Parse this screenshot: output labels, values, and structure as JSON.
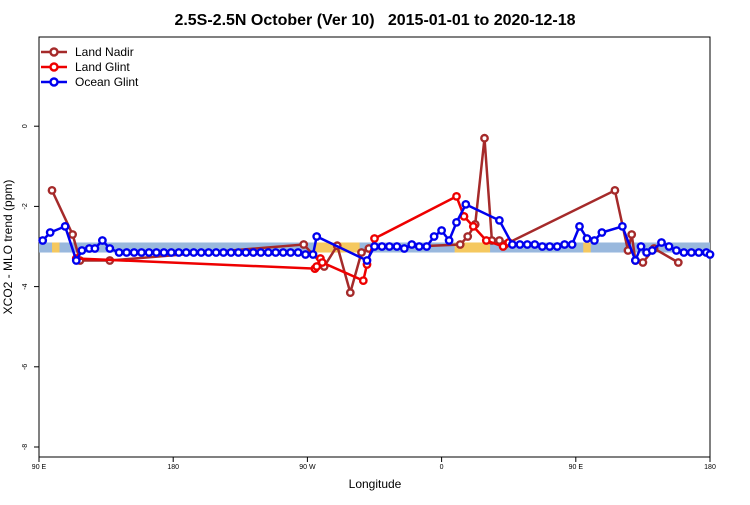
{
  "chart_data": {
    "type": "line",
    "title": "2.5S-2.5N October (Ver 10)   2015-01-01 to 2020-12-18",
    "xlabel": "Longitude",
    "ylabel": "XCO2 - MLO trend (ppm)",
    "xlim": [
      90,
      450
    ],
    "ylim": [
      -8,
      2
    ],
    "x_ticks": [
      {
        "value": 90,
        "label": "90 E"
      },
      {
        "value": 162,
        "label": "180"
      },
      {
        "value": 234,
        "label": "90 W"
      },
      {
        "value": 306,
        "label": "0"
      },
      {
        "value": 378,
        "label": "90 E"
      },
      {
        "value": 450,
        "label": "180"
      }
    ],
    "y_ticks": [
      0,
      -2,
      -4,
      -6,
      -8
    ],
    "legend_position": "top-left",
    "colors": {
      "land_nadir": "#a52a2a",
      "land_glint": "#ee0000",
      "ocean_glint": "#0000ee",
      "band_ocean": "#99b8dd",
      "band_land": "#f5c85f"
    },
    "band": {
      "ymin": -3.15,
      "ymax": -2.9,
      "land_segments": [
        [
          97,
          101
        ],
        [
          238,
          262
        ],
        [
          313,
          332
        ],
        [
          382,
          386
        ]
      ]
    },
    "series": [
      {
        "name": "Land Nadir",
        "color": "#a52a2a",
        "points": [
          [
            97,
            -1.6
          ],
          [
            108,
            -2.7
          ],
          [
            112,
            -3.35
          ],
          [
            128,
            -3.35
          ],
          [
            232,
            -2.95
          ],
          [
            243,
            -3.5
          ],
          [
            250,
            -2.98
          ],
          [
            257,
            -4.15
          ],
          [
            263,
            -3.15
          ],
          [
            267,
            -3.05
          ],
          [
            316,
            -2.95
          ],
          [
            320,
            -2.75
          ],
          [
            324,
            -2.45
          ],
          [
            329,
            -0.3
          ],
          [
            333,
            -2.85
          ],
          [
            337,
            -2.85
          ],
          [
            340,
            -2.95
          ],
          [
            399,
            -1.6
          ],
          [
            406,
            -3.1
          ],
          [
            408,
            -2.7
          ],
          [
            410,
            -3.35
          ],
          [
            414,
            -3.4
          ],
          [
            420,
            -3.05
          ],
          [
            433,
            -3.4
          ]
        ]
      },
      {
        "name": "Land Glint",
        "color": "#ee0000",
        "points": [
          [
            110,
            -3.3
          ],
          [
            238,
            -3.55
          ],
          [
            239,
            -3.5
          ],
          [
            241,
            -3.3
          ],
          [
            242,
            -3.4
          ],
          [
            264,
            -3.85
          ],
          [
            266,
            -3.45
          ],
          [
            270,
            -2.8
          ],
          [
            314,
            -1.75
          ],
          [
            318,
            -2.25
          ],
          [
            323,
            -2.5
          ],
          [
            330,
            -2.85
          ],
          [
            339,
            -3.0
          ],
          [
            342,
            -2.9
          ]
        ]
      },
      {
        "name": "Ocean Glint",
        "color": "#0000ee",
        "points": [
          [
            92,
            -2.85
          ],
          [
            96,
            -2.65
          ],
          [
            104,
            -2.5
          ],
          [
            110,
            -3.35
          ],
          [
            113,
            -3.1
          ],
          [
            117,
            -3.05
          ],
          [
            120,
            -3.05
          ],
          [
            124,
            -2.85
          ],
          [
            128,
            -3.05
          ],
          [
            133,
            -3.15
          ],
          [
            137,
            -3.15
          ],
          [
            141,
            -3.15
          ],
          [
            145,
            -3.15
          ],
          [
            149,
            -3.15
          ],
          [
            153,
            -3.15
          ],
          [
            157,
            -3.15
          ],
          [
            161,
            -3.15
          ],
          [
            165,
            -3.15
          ],
          [
            169,
            -3.15
          ],
          [
            173,
            -3.15
          ],
          [
            177,
            -3.15
          ],
          [
            181,
            -3.15
          ],
          [
            185,
            -3.15
          ],
          [
            189,
            -3.15
          ],
          [
            193,
            -3.15
          ],
          [
            197,
            -3.15
          ],
          [
            201,
            -3.15
          ],
          [
            205,
            -3.15
          ],
          [
            209,
            -3.15
          ],
          [
            213,
            -3.15
          ],
          [
            217,
            -3.15
          ],
          [
            221,
            -3.15
          ],
          [
            225,
            -3.15
          ],
          [
            229,
            -3.15
          ],
          [
            233,
            -3.2
          ],
          [
            237,
            -3.2
          ],
          [
            239,
            -2.75
          ],
          [
            266,
            -3.35
          ],
          [
            270,
            -3.0
          ],
          [
            274,
            -3.0
          ],
          [
            278,
            -3.0
          ],
          [
            282,
            -3.0
          ],
          [
            286,
            -3.05
          ],
          [
            290,
            -2.95
          ],
          [
            294,
            -3.0
          ],
          [
            298,
            -3.0
          ],
          [
            302,
            -2.75
          ],
          [
            306,
            -2.6
          ],
          [
            310,
            -2.85
          ],
          [
            314,
            -2.4
          ],
          [
            319,
            -1.95
          ],
          [
            337,
            -2.35
          ],
          [
            344,
            -2.95
          ],
          [
            348,
            -2.95
          ],
          [
            352,
            -2.95
          ],
          [
            356,
            -2.95
          ],
          [
            360,
            -3.0
          ],
          [
            364,
            -3.0
          ],
          [
            368,
            -3.0
          ],
          [
            372,
            -2.95
          ],
          [
            376,
            -2.95
          ],
          [
            380,
            -2.5
          ],
          [
            384,
            -2.8
          ],
          [
            388,
            -2.85
          ],
          [
            392,
            -2.65
          ],
          [
            403,
            -2.5
          ],
          [
            410,
            -3.35
          ],
          [
            413,
            -3.0
          ],
          [
            416,
            -3.15
          ],
          [
            419,
            -3.1
          ],
          [
            424,
            -2.9
          ],
          [
            428,
            -3.0
          ],
          [
            432,
            -3.1
          ],
          [
            436,
            -3.15
          ],
          [
            440,
            -3.15
          ],
          [
            444,
            -3.15
          ],
          [
            448,
            -3.15
          ],
          [
            450,
            -3.2
          ]
        ]
      }
    ]
  }
}
